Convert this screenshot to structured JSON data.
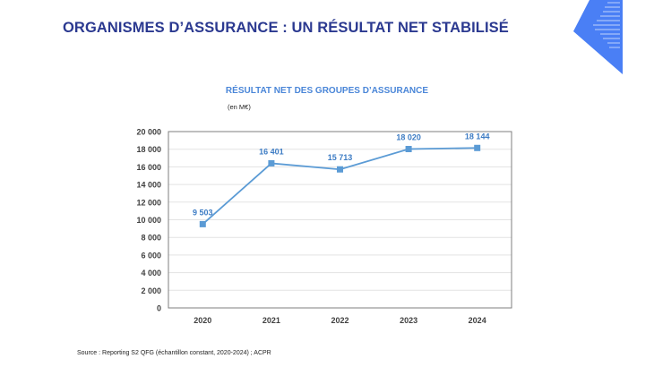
{
  "slide": {
    "title": "ORGANISMES D’ASSURANCE : UN RÉSULTAT NET STABILISÉ"
  },
  "logo": {
    "icon": "blue-diamond-logo",
    "color": "#4a7ff5"
  },
  "source": "Source : Reporting S2 QFG (échantillon constant, 2020-2024) ; ACPR",
  "chart_data": {
    "type": "line",
    "title": "RÉSULTAT NET DES GROUPES D’ASSURANCE",
    "unit": "(en M€)",
    "categories": [
      "2020",
      "2021",
      "2022",
      "2023",
      "2024"
    ],
    "values": [
      9503,
      16401,
      15713,
      18020,
      18144
    ],
    "data_labels": [
      "9 503",
      "16 401",
      "15 713",
      "18 020",
      "18 144"
    ],
    "ylim": [
      0,
      20000
    ],
    "yticks": [
      "0",
      "2 000",
      "4 000",
      "6 000",
      "8 000",
      "10 000",
      "12 000",
      "14 000",
      "16 000",
      "18 000",
      "20 000"
    ],
    "grid": true,
    "legend": "none",
    "colors": {
      "line": "#5b9bd5",
      "labels": "#3d7cc4",
      "title": "#4a86d8"
    }
  }
}
